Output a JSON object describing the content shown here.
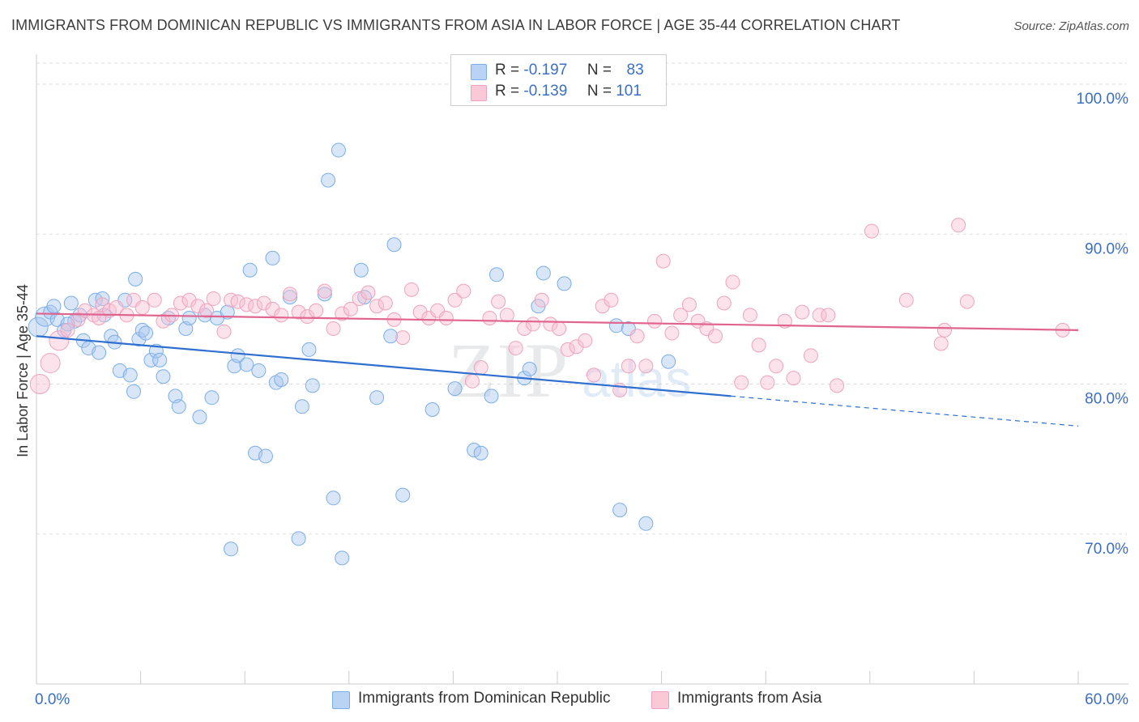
{
  "header": {
    "title": "IMMIGRANTS FROM DOMINICAN REPUBLIC VS IMMIGRANTS FROM ASIA IN LABOR FORCE | AGE 35-44 CORRELATION CHART",
    "source": "Source: ZipAtlas.com"
  },
  "legend": {
    "r_label": "R =",
    "n_label": "N =",
    "rows": [
      {
        "r": "-0.197",
        "n": "83"
      },
      {
        "r": "-0.139",
        "n": "101"
      }
    ]
  },
  "watermark": {
    "part1": "ZIP",
    "part2": "atlas"
  },
  "chart_data": {
    "type": "scatter",
    "xlabel": "",
    "ylabel": "In Labor Force | Age 35-44",
    "xlim": [
      0,
      60
    ],
    "ylim": [
      60,
      102
    ],
    "x_tick_labels": [
      "0.0%",
      "60.0%"
    ],
    "y_ticks": [
      70,
      80,
      90,
      100
    ],
    "y_tick_labels": [
      "70.0%",
      "80.0%",
      "90.0%",
      "100.0%"
    ],
    "grid": true,
    "legend_position": "top-center",
    "colors": {
      "blue": "#7aaee8",
      "blue_line": "#2f6fd0",
      "pink": "#f0a0bc",
      "pink_line": "#e0648e"
    },
    "series": [
      {
        "name": "Immigrants from Dominican Republic",
        "r": -0.197,
        "n": 83,
        "trend": {
          "x0": 0,
          "y0": 83.2,
          "x1": 40,
          "y1": 79.2,
          "dash_to_x": 60,
          "dash_to_y": 77.2
        },
        "points": [
          [
            0.1,
            83.8
          ],
          [
            0.5,
            84.5
          ],
          [
            0.8,
            84.8
          ],
          [
            1.0,
            85.2
          ],
          [
            1.2,
            84.3
          ],
          [
            1.6,
            83.6
          ],
          [
            2.0,
            85.4
          ],
          [
            2.2,
            84.2
          ],
          [
            2.5,
            84.6
          ],
          [
            2.7,
            82.9
          ],
          [
            3.0,
            82.4
          ],
          [
            3.4,
            85.6
          ],
          [
            3.6,
            82.1
          ],
          [
            3.9,
            84.6
          ],
          [
            4.3,
            83.2
          ],
          [
            4.5,
            82.8
          ],
          [
            4.8,
            80.9
          ],
          [
            5.1,
            85.6
          ],
          [
            5.4,
            80.6
          ],
          [
            5.6,
            79.5
          ],
          [
            5.9,
            83.0
          ],
          [
            6.1,
            83.6
          ],
          [
            6.3,
            83.4
          ],
          [
            6.6,
            81.6
          ],
          [
            6.9,
            82.2
          ],
          [
            7.1,
            81.6
          ],
          [
            7.3,
            80.5
          ],
          [
            7.6,
            84.4
          ],
          [
            8.0,
            79.2
          ],
          [
            8.2,
            78.5
          ],
          [
            8.6,
            83.7
          ],
          [
            8.8,
            84.4
          ],
          [
            9.4,
            77.8
          ],
          [
            9.7,
            84.6
          ],
          [
            10.1,
            79.1
          ],
          [
            10.4,
            84.4
          ],
          [
            11.2,
            69.0
          ],
          [
            11.4,
            81.2
          ],
          [
            11.6,
            81.9
          ],
          [
            12.1,
            81.3
          ],
          [
            12.3,
            87.6
          ],
          [
            12.6,
            75.4
          ],
          [
            12.8,
            80.9
          ],
          [
            13.2,
            75.2
          ],
          [
            13.6,
            88.4
          ],
          [
            13.8,
            80.1
          ],
          [
            14.1,
            80.3
          ],
          [
            14.6,
            85.8
          ],
          [
            15.1,
            69.7
          ],
          [
            15.3,
            78.5
          ],
          [
            15.7,
            82.3
          ],
          [
            15.9,
            79.9
          ],
          [
            16.6,
            86.0
          ],
          [
            16.8,
            93.6
          ],
          [
            17.1,
            72.4
          ],
          [
            17.4,
            95.6
          ],
          [
            17.6,
            68.4
          ],
          [
            18.7,
            87.6
          ],
          [
            18.9,
            85.8
          ],
          [
            19.6,
            79.1
          ],
          [
            20.4,
            83.2
          ],
          [
            20.6,
            89.3
          ],
          [
            21.1,
            72.6
          ],
          [
            22.8,
            78.3
          ],
          [
            24.1,
            79.7
          ],
          [
            25.2,
            75.6
          ],
          [
            25.6,
            75.4
          ],
          [
            26.2,
            79.2
          ],
          [
            26.5,
            87.3
          ],
          [
            28.1,
            80.4
          ],
          [
            28.4,
            81.0
          ],
          [
            28.9,
            85.2
          ],
          [
            29.2,
            87.4
          ],
          [
            30.4,
            86.7
          ],
          [
            33.4,
            83.9
          ],
          [
            33.6,
            71.6
          ],
          [
            34.1,
            83.7
          ],
          [
            35.1,
            70.7
          ],
          [
            36.4,
            81.5
          ],
          [
            3.8,
            85.7
          ],
          [
            5.7,
            87.0
          ],
          [
            11.0,
            84.8
          ],
          [
            1.8,
            84.0
          ]
        ]
      },
      {
        "name": "Immigrants from Asia",
        "r": -0.139,
        "n": 101,
        "trend": {
          "x0": 0,
          "y0": 84.7,
          "x1": 60,
          "y1": 83.6
        },
        "points": [
          [
            0.2,
            80.0
          ],
          [
            0.8,
            81.4
          ],
          [
            1.3,
            82.9
          ],
          [
            1.8,
            83.6
          ],
          [
            2.4,
            84.3
          ],
          [
            2.8,
            84.9
          ],
          [
            3.3,
            84.6
          ],
          [
            3.8,
            85.3
          ],
          [
            4.2,
            84.9
          ],
          [
            4.6,
            85.1
          ],
          [
            5.2,
            84.6
          ],
          [
            5.6,
            85.6
          ],
          [
            6.1,
            85.1
          ],
          [
            6.8,
            85.6
          ],
          [
            7.3,
            84.2
          ],
          [
            7.8,
            84.6
          ],
          [
            8.3,
            85.4
          ],
          [
            8.8,
            85.6
          ],
          [
            9.3,
            85.2
          ],
          [
            9.8,
            84.9
          ],
          [
            10.2,
            85.7
          ],
          [
            10.8,
            83.5
          ],
          [
            11.2,
            85.6
          ],
          [
            11.6,
            85.5
          ],
          [
            12.1,
            85.3
          ],
          [
            12.6,
            85.2
          ],
          [
            13.1,
            85.4
          ],
          [
            13.6,
            85.0
          ],
          [
            14.1,
            84.6
          ],
          [
            14.6,
            86.0
          ],
          [
            15.1,
            84.8
          ],
          [
            15.6,
            84.5
          ],
          [
            16.1,
            84.9
          ],
          [
            16.6,
            86.2
          ],
          [
            17.1,
            83.7
          ],
          [
            17.6,
            84.7
          ],
          [
            18.1,
            85.0
          ],
          [
            18.6,
            85.7
          ],
          [
            19.1,
            86.1
          ],
          [
            19.6,
            85.2
          ],
          [
            20.1,
            85.4
          ],
          [
            20.6,
            84.3
          ],
          [
            21.1,
            83.1
          ],
          [
            21.6,
            86.3
          ],
          [
            22.1,
            84.8
          ],
          [
            22.6,
            84.4
          ],
          [
            23.1,
            84.9
          ],
          [
            23.6,
            84.4
          ],
          [
            24.1,
            85.6
          ],
          [
            24.6,
            86.2
          ],
          [
            25.1,
            80.2
          ],
          [
            25.6,
            81.1
          ],
          [
            26.1,
            84.4
          ],
          [
            26.6,
            85.5
          ],
          [
            27.1,
            84.6
          ],
          [
            27.6,
            82.4
          ],
          [
            28.1,
            83.7
          ],
          [
            28.6,
            84.0
          ],
          [
            29.1,
            85.6
          ],
          [
            29.6,
            84.0
          ],
          [
            30.1,
            83.7
          ],
          [
            30.6,
            82.3
          ],
          [
            31.1,
            82.5
          ],
          [
            31.6,
            82.9
          ],
          [
            32.1,
            80.6
          ],
          [
            32.6,
            85.2
          ],
          [
            33.1,
            85.6
          ],
          [
            33.6,
            79.6
          ],
          [
            34.1,
            81.2
          ],
          [
            34.6,
            83.2
          ],
          [
            35.1,
            81.2
          ],
          [
            35.6,
            84.2
          ],
          [
            36.1,
            88.2
          ],
          [
            36.6,
            83.4
          ],
          [
            37.1,
            84.6
          ],
          [
            37.6,
            85.3
          ],
          [
            38.1,
            84.2
          ],
          [
            38.6,
            83.7
          ],
          [
            39.1,
            83.2
          ],
          [
            39.6,
            85.4
          ],
          [
            40.1,
            86.8
          ],
          [
            40.6,
            80.1
          ],
          [
            41.1,
            84.6
          ],
          [
            41.6,
            82.6
          ],
          [
            42.1,
            80.1
          ],
          [
            42.6,
            81.2
          ],
          [
            43.1,
            84.2
          ],
          [
            43.6,
            80.4
          ],
          [
            44.1,
            84.8
          ],
          [
            44.6,
            81.9
          ],
          [
            45.1,
            84.6
          ],
          [
            45.6,
            84.6
          ],
          [
            46.1,
            79.9
          ],
          [
            48.1,
            90.2
          ],
          [
            50.1,
            85.6
          ],
          [
            52.1,
            82.7
          ],
          [
            52.3,
            83.6
          ],
          [
            53.1,
            90.6
          ],
          [
            53.6,
            85.5
          ],
          [
            59.1,
            83.6
          ],
          [
            3.6,
            84.4
          ]
        ]
      }
    ]
  }
}
